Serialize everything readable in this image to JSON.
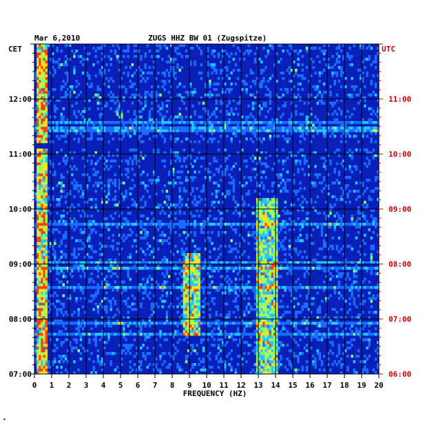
{
  "header": {
    "date": "Mar 6,2010",
    "station": "ZUGS HHZ BW 01 (Zugspitze)",
    "left_zone": "CET",
    "right_zone": "UTC"
  },
  "footer": {
    "mark": "*"
  },
  "colors": {
    "background": "#0a1fb8",
    "grid": "#000000",
    "left_axis": "#000000",
    "right_axis": "#cc0000",
    "colormap": [
      "#001a9e",
      "#0838d8",
      "#1a6cff",
      "#22c8ff",
      "#8cff6a",
      "#ffe020",
      "#ff4000"
    ]
  },
  "chart_data": {
    "type": "heatmap",
    "title": "ZUGS HHZ BW 01 (Zugspitze)",
    "date": "Mar 6,2010",
    "xlabel": "FREQUENCY (HZ)",
    "x_ticks": [
      "0",
      "1",
      "2",
      "3",
      "4",
      "5",
      "6",
      "7",
      "8",
      "9",
      "10",
      "11",
      "12",
      "13",
      "14",
      "15",
      "16",
      "17",
      "18",
      "19",
      "20"
    ],
    "xlim": [
      0,
      20
    ],
    "left_axis": {
      "zone": "CET",
      "ticks": [
        "07:00",
        "08:00",
        "09:00",
        "10:00",
        "11:00",
        "12:00"
      ],
      "range_hours": [
        7,
        13
      ]
    },
    "right_axis": {
      "zone": "UTC",
      "ticks": [
        "06:00",
        "07:00",
        "08:00",
        "09:00",
        "10:00",
        "11:00"
      ],
      "range_hours": [
        6,
        12
      ]
    },
    "features": [
      {
        "name": "low-frequency energy",
        "freq_hz": [
          0.1,
          0.8
        ],
        "time_cet": [
          7.0,
          13.0
        ],
        "level": 0.75
      },
      {
        "name": "band near 9 Hz",
        "freq_hz": [
          8.6,
          9.6
        ],
        "time_cet": [
          7.7,
          9.2
        ],
        "level": 0.6
      },
      {
        "name": "band near 13.5 Hz",
        "freq_hz": [
          12.9,
          14.1
        ],
        "time_cet": [
          7.0,
          10.2
        ],
        "level": 0.55
      },
      {
        "name": "data gap",
        "freq_hz": [
          0,
          20
        ],
        "time_cet": [
          11.1,
          11.18
        ],
        "level": 0.0
      }
    ]
  }
}
